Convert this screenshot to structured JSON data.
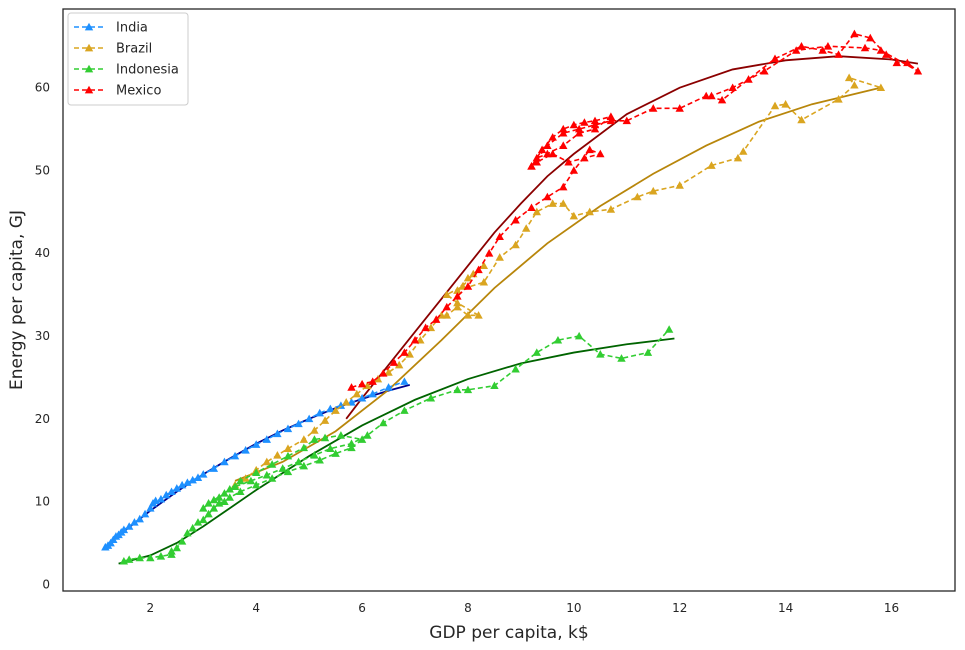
{
  "chart_data": {
    "type": "line",
    "title": "",
    "xlabel": "GDP per capita, k$",
    "ylabel": "Energy per capita, GJ",
    "xlim": [
      0.35,
      17.2
    ],
    "ylim": [
      -0.8,
      69.5
    ],
    "xticks": [
      2,
      4,
      6,
      8,
      10,
      12,
      14,
      16
    ],
    "yticks": [
      0,
      10,
      20,
      30,
      40,
      50,
      60
    ],
    "grid": false,
    "legend_position": "top-left",
    "series": [
      {
        "name": "India",
        "color": "#1e90ff",
        "fit_color": "#00008b",
        "x": [
          1.15,
          1.2,
          1.25,
          1.3,
          1.35,
          1.4,
          1.45,
          1.5,
          1.6,
          1.7,
          1.8,
          1.9,
          2.0,
          2.05,
          2.1,
          2.2,
          2.3,
          2.4,
          2.5,
          2.6,
          2.7,
          2.8,
          2.9,
          3.0,
          3.2,
          3.4,
          3.6,
          3.8,
          4.0,
          4.2,
          4.4,
          4.6,
          4.8,
          5.0,
          5.2,
          5.4,
          5.6,
          5.8,
          6.0,
          6.2,
          6.5,
          6.8
        ],
        "y": [
          4.5,
          4.7,
          5.0,
          5.4,
          5.8,
          6.0,
          6.3,
          6.6,
          7.0,
          7.5,
          7.9,
          8.5,
          9.2,
          9.8,
          10.1,
          10.3,
          10.8,
          11.2,
          11.6,
          12.0,
          12.3,
          12.6,
          12.9,
          13.3,
          14.0,
          14.8,
          15.5,
          16.2,
          16.9,
          17.5,
          18.2,
          18.8,
          19.4,
          20.0,
          20.7,
          21.2,
          21.6,
          22.0,
          22.5,
          23.0,
          23.8,
          24.5
        ],
        "fit_x": [
          1.15,
          1.5,
          2.0,
          2.5,
          3.0,
          3.5,
          4.0,
          4.5,
          5.0,
          5.5,
          6.0,
          6.5,
          6.9
        ],
        "fit_y": [
          4.5,
          6.4,
          8.9,
          11.2,
          13.3,
          15.2,
          17.0,
          18.6,
          20.0,
          21.3,
          22.4,
          23.4,
          24.1
        ]
      },
      {
        "name": "Brazil",
        "color": "#daa520",
        "fit_color": "#b8860b",
        "x": [
          3.6,
          3.8,
          4.0,
          4.2,
          4.4,
          4.6,
          4.9,
          5.1,
          5.3,
          5.5,
          5.7,
          5.9,
          6.1,
          6.3,
          6.5,
          6.7,
          6.9,
          7.1,
          7.3,
          7.5,
          7.6,
          7.8,
          8.0,
          8.2,
          7.8,
          7.6,
          7.9,
          8.1,
          8.3,
          8.0,
          7.8,
          8.3,
          8.6,
          8.9,
          9.1,
          9.3,
          9.6,
          9.8,
          10.0,
          10.3,
          10.7,
          11.2,
          11.5,
          12.0,
          12.6,
          13.1,
          13.2,
          13.8,
          14.0,
          14.3,
          15.0,
          15.3,
          15.2,
          15.8
        ],
        "y": [
          12.0,
          12.8,
          13.8,
          14.8,
          15.6,
          16.4,
          17.5,
          18.6,
          19.8,
          21.0,
          22.0,
          23.0,
          24.0,
          24.8,
          25.6,
          26.5,
          27.8,
          29.5,
          31.0,
          32.5,
          32.5,
          33.5,
          32.5,
          32.5,
          34.0,
          35.0,
          36.0,
          37.5,
          38.5,
          37.0,
          35.5,
          36.5,
          39.5,
          41.0,
          43.0,
          45.0,
          46.0,
          46.0,
          44.5,
          45.0,
          45.3,
          46.8,
          47.5,
          48.2,
          50.6,
          51.5,
          52.3,
          57.8,
          58.0,
          56.1,
          58.6,
          60.3,
          61.2,
          60.0
        ],
        "fit_x": [
          3.6,
          4.5,
          5.5,
          6.5,
          7.5,
          8.5,
          9.5,
          10.5,
          11.5,
          12.5,
          13.5,
          14.5,
          15.8
        ],
        "fit_y": [
          12.5,
          14.8,
          18.5,
          23.5,
          29.5,
          35.8,
          41.2,
          45.7,
          49.6,
          53.0,
          55.9,
          58.0,
          60.0
        ]
      },
      {
        "name": "Indonesia",
        "color": "#32cd32",
        "fit_color": "#006400",
        "x": [
          1.5,
          1.6,
          1.8,
          2.0,
          2.2,
          2.4,
          2.4,
          2.5,
          2.6,
          2.7,
          2.8,
          2.9,
          3.0,
          3.1,
          3.2,
          3.3,
          3.4,
          3.5,
          3.7,
          4.0,
          4.3,
          4.6,
          4.9,
          5.2,
          5.5,
          5.8,
          6.0,
          5.6,
          5.3,
          5.1,
          4.9,
          4.6,
          4.3,
          4.0,
          3.7,
          3.5,
          3.3,
          3.1,
          3.0,
          3.2,
          3.4,
          3.6,
          3.9,
          4.2,
          4.5,
          4.8,
          5.1,
          5.4,
          5.8,
          6.1,
          6.4,
          6.8,
          7.3,
          7.8,
          8.0,
          8.5,
          8.9,
          9.3,
          9.7,
          10.1,
          10.5,
          10.9,
          11.4,
          11.8
        ],
        "y": [
          2.8,
          3.0,
          3.2,
          3.2,
          3.4,
          3.6,
          4.0,
          4.4,
          5.2,
          6.2,
          6.8,
          7.5,
          7.8,
          8.5,
          9.2,
          9.8,
          10.0,
          10.5,
          11.2,
          12.0,
          12.8,
          13.6,
          14.3,
          15.0,
          15.8,
          16.5,
          17.5,
          18.0,
          17.7,
          17.5,
          16.5,
          15.5,
          14.5,
          13.5,
          12.5,
          11.5,
          10.5,
          9.8,
          9.2,
          10.2,
          11.0,
          11.8,
          12.5,
          13.2,
          14.0,
          14.8,
          15.6,
          16.4,
          17.0,
          18.0,
          19.5,
          21.0,
          22.5,
          23.5,
          23.5,
          24.0,
          26.0,
          28.0,
          29.5,
          30.0,
          27.8,
          27.3,
          28.0,
          30.8
        ],
        "fit_x": [
          1.4,
          2.0,
          2.5,
          3.0,
          3.5,
          4.0,
          5.0,
          6.0,
          7.0,
          8.0,
          9.0,
          10.0,
          11.0,
          11.9
        ],
        "fit_y": [
          2.5,
          3.5,
          5.0,
          7.0,
          9.2,
          11.4,
          15.5,
          19.2,
          22.3,
          24.8,
          26.7,
          28.0,
          29.0,
          29.7
        ]
      },
      {
        "name": "Mexico",
        "color": "#ff0000",
        "fit_color": "#8b0000",
        "x": [
          5.8,
          6.0,
          6.2,
          6.4,
          6.6,
          6.8,
          7.0,
          7.2,
          7.4,
          7.6,
          7.8,
          8.0,
          8.2,
          8.4,
          8.6,
          8.9,
          9.2,
          9.5,
          9.8,
          10.0,
          10.3,
          10.5,
          10.2,
          9.9,
          9.6,
          9.3,
          9.2,
          9.4,
          9.6,
          9.8,
          10.0,
          10.2,
          10.4,
          10.7,
          10.4,
          10.1,
          9.8,
          9.5,
          9.3,
          9.2,
          9.5,
          9.8,
          10.1,
          10.4,
          10.7,
          11.0,
          11.5,
          12.0,
          12.5,
          12.8,
          13.3,
          13.8,
          14.3,
          14.7,
          15.0,
          15.3,
          15.6,
          15.9,
          16.1,
          16.3,
          16.5,
          15.8,
          15.5,
          14.8,
          14.2,
          13.6,
          13.0,
          12.6
        ],
        "y": [
          23.8,
          24.2,
          24.5,
          25.5,
          26.8,
          28.0,
          29.5,
          31.0,
          32.0,
          33.5,
          34.8,
          36.0,
          38.0,
          40.0,
          42.0,
          44.0,
          45.5,
          46.8,
          48.0,
          50.0,
          52.5,
          52.0,
          51.5,
          51.0,
          52.0,
          51.0,
          50.5,
          52.5,
          54.0,
          55.0,
          55.5,
          55.8,
          56.0,
          56.5,
          55.0,
          54.5,
          53.0,
          52.0,
          51.5,
          50.5,
          53.0,
          54.5,
          55.0,
          55.5,
          56.0,
          56.0,
          57.5,
          57.5,
          59.0,
          58.5,
          61.0,
          63.5,
          65.0,
          64.5,
          64.0,
          66.5,
          66.0,
          64.0,
          63.0,
          63.0,
          62.0,
          64.5,
          64.8,
          65.0,
          64.5,
          62.0,
          60.0,
          59.0
        ],
        "fit_x": [
          5.7,
          6.0,
          6.5,
          7.0,
          7.5,
          8.0,
          8.5,
          9.0,
          9.5,
          10.0,
          11.0,
          12.0,
          13.0,
          14.0,
          15.0,
          16.0,
          16.5
        ],
        "fit_y": [
          20.0,
          22.5,
          26.5,
          30.5,
          34.5,
          38.5,
          42.5,
          46.0,
          49.3,
          52.0,
          56.8,
          60.0,
          62.2,
          63.3,
          63.8,
          63.4,
          62.9
        ]
      }
    ]
  }
}
